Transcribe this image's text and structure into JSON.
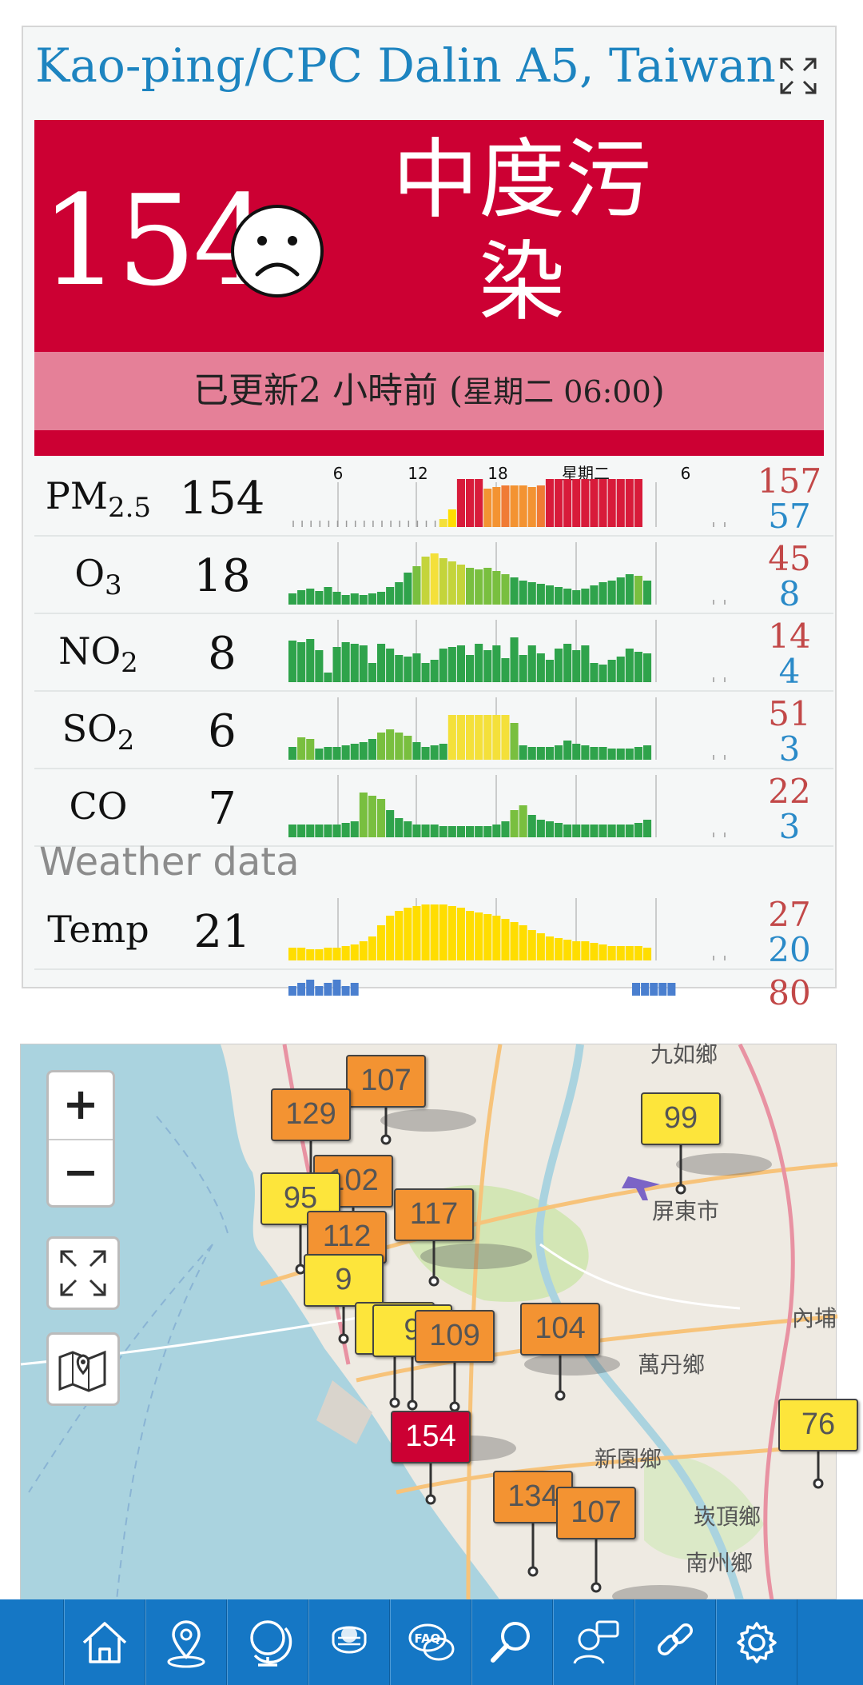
{
  "station": {
    "title": "Kao-ping/CPC Dalin A5, Taiwan"
  },
  "aqi": {
    "value": "154",
    "level": "中度污染",
    "updated": "已更新2 小時前 (",
    "updated_time": "星期二 06:00",
    "updated_close": ")",
    "color": "#cc0033"
  },
  "timeline": {
    "ticks": [
      "6",
      "12",
      "18",
      "星期二",
      "6"
    ]
  },
  "pollutants": [
    {
      "name": "PM",
      "sub": "2.5",
      "value": "154",
      "max": "157",
      "min": "57"
    },
    {
      "name": "O",
      "sub": "3",
      "value": "18",
      "max": "45",
      "min": "8"
    },
    {
      "name": "NO",
      "sub": "2",
      "value": "8",
      "max": "14",
      "min": "4"
    },
    {
      "name": "SO",
      "sub": "2",
      "value": "6",
      "max": "51",
      "min": "3"
    },
    {
      "name": "CO",
      "sub": "",
      "value": "7",
      "max": "22",
      "min": "3"
    }
  ],
  "weather": {
    "heading": "Weather data",
    "rows": [
      {
        "name": "Temp",
        "value": "21",
        "max": "27",
        "min": "20"
      }
    ],
    "partial_max": "80"
  },
  "map": {
    "zoom_in": "+",
    "zoom_out": "−",
    "place_labels": [
      "九如鄉",
      "屏東市",
      "萬丹鄉",
      "新園鄉",
      "崁頂鄉",
      "南州鄉",
      "內埔"
    ],
    "markers": [
      {
        "value": "107",
        "color": "#f39332"
      },
      {
        "value": "129",
        "color": "#f39332"
      },
      {
        "value": "99",
        "color": "#fde53b"
      },
      {
        "value": "102",
        "color": "#f39332"
      },
      {
        "value": "95",
        "color": "#fde53b"
      },
      {
        "value": "117",
        "color": "#f39332"
      },
      {
        "value": "112",
        "color": "#f39332"
      },
      {
        "value": "9",
        "color": "#fde53b"
      },
      {
        "value": "9",
        "color": "#fde53b"
      },
      {
        "value": "9",
        "color": "#fde53b"
      },
      {
        "value": "109",
        "color": "#f39332"
      },
      {
        "value": "104",
        "color": "#f39332"
      },
      {
        "value": "76",
        "color": "#fde53b"
      },
      {
        "value": "154",
        "color": "#cc0033"
      },
      {
        "value": "134",
        "color": "#f39332"
      },
      {
        "value": "107",
        "color": "#f39332"
      }
    ]
  },
  "nav": {
    "icons": [
      "home-icon",
      "location-pin-icon",
      "globe-icon",
      "mask-icon",
      "faq-icon",
      "search-icon",
      "support-icon",
      "link-icon",
      "gear-icon"
    ],
    "faq_label": "FAQ"
  }
}
